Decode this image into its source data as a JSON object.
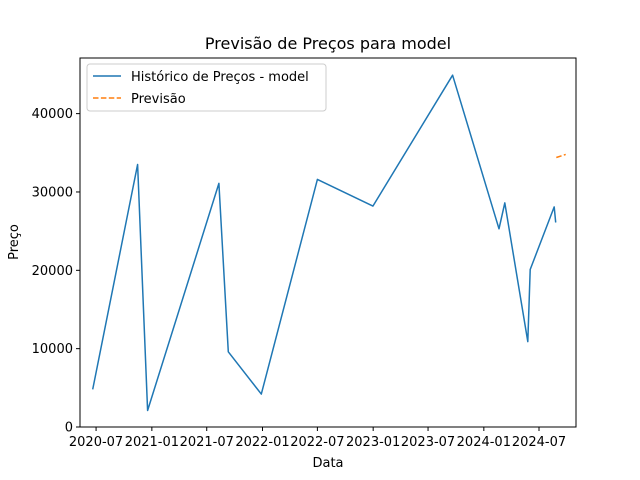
{
  "chart_data": {
    "type": "line",
    "title": "Previsão de Preços para model",
    "xlabel": "Data",
    "ylabel": "Preço",
    "x_axis_type": "date",
    "xlim": [
      "2020-05-09",
      "2024-10-31"
    ],
    "ylim": [
      0,
      47100
    ],
    "x_ticks": [
      {
        "value": "2020-07-01",
        "label": "2020-07"
      },
      {
        "value": "2021-01-01",
        "label": "2021-01"
      },
      {
        "value": "2021-07-01",
        "label": "2021-07"
      },
      {
        "value": "2022-01-01",
        "label": "2022-01"
      },
      {
        "value": "2022-07-01",
        "label": "2022-07"
      },
      {
        "value": "2023-01-01",
        "label": "2023-01"
      },
      {
        "value": "2023-07-01",
        "label": "2023-07"
      },
      {
        "value": "2024-01-01",
        "label": "2024-01"
      },
      {
        "value": "2024-07-01",
        "label": "2024-07"
      }
    ],
    "y_ticks": [
      0,
      10000,
      20000,
      30000,
      40000
    ],
    "grid": false,
    "legend_position": "top-left",
    "series": [
      {
        "name": "Histórico de Preços - model",
        "color": "#1f77b4",
        "style": "solid",
        "points": [
          {
            "x": "2020-06-20",
            "y": 4800
          },
          {
            "x": "2020-11-15",
            "y": 33500
          },
          {
            "x": "2020-12-18",
            "y": 2100
          },
          {
            "x": "2021-08-10",
            "y": 31100
          },
          {
            "x": "2021-09-10",
            "y": 9600
          },
          {
            "x": "2021-12-28",
            "y": 4200
          },
          {
            "x": "2022-07-01",
            "y": 31600
          },
          {
            "x": "2022-12-31",
            "y": 28200
          },
          {
            "x": "2023-09-20",
            "y": 44900
          },
          {
            "x": "2024-02-20",
            "y": 25300
          },
          {
            "x": "2024-03-10",
            "y": 28600
          },
          {
            "x": "2024-05-25",
            "y": 10900
          },
          {
            "x": "2024-06-02",
            "y": 20100
          },
          {
            "x": "2024-08-20",
            "y": 28100
          },
          {
            "x": "2024-08-25",
            "y": 26100
          }
        ]
      },
      {
        "name": "Previsão",
        "color": "#ff7f0e",
        "style": "dashed",
        "points": [
          {
            "x": "2024-08-27",
            "y": 34400
          },
          {
            "x": "2024-09-27",
            "y": 34800
          }
        ]
      }
    ]
  }
}
